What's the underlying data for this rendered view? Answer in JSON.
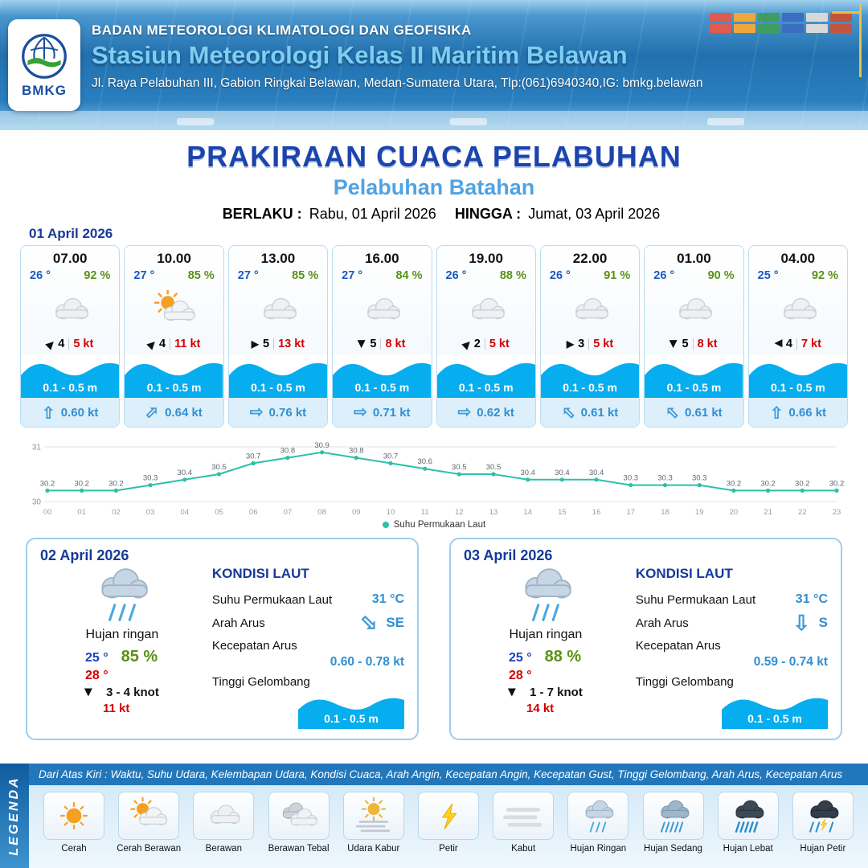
{
  "header": {
    "logo_label": "BMKG",
    "org": "BADAN METEOROLOGI KLIMATOLOGI DAN GEOFISIKA",
    "station": "Stasiun Meteorologi Kelas II Maritim Belawan",
    "address": "Jl. Raya Pelabuhan III, Gabion Ringkai Belawan, Medan-Sumatera Utara, Tlp:(061)6940340,IG: bmkg.belawan"
  },
  "title": {
    "main": "PRAKIRAAN CUACA PELABUHAN",
    "sub": "Pelabuhan Batahan",
    "valid_label": "BERLAKU :",
    "valid_value": "Rabu, 01 April 2026",
    "until_label": "HINGGA :",
    "until_value": "Jumat, 03 April 2026"
  },
  "forecast_date": "01 April 2026",
  "cards": [
    {
      "time": "07.00",
      "temp": "26 °",
      "rh": "92 %",
      "icon": "berawan",
      "wind_dir": "ne",
      "wind": "4",
      "gust": "5 kt",
      "wave": "0.1 - 0.5 m",
      "current_dir": "n",
      "current": "0.60 kt"
    },
    {
      "time": "10.00",
      "temp": "27 °",
      "rh": "85 %",
      "icon": "cerah-berawan",
      "wind_dir": "ne",
      "wind": "4",
      "gust": "11 kt",
      "wave": "0.1 - 0.5 m",
      "current_dir": "ne",
      "current": "0.64 kt"
    },
    {
      "time": "13.00",
      "temp": "27 °",
      "rh": "85 %",
      "icon": "berawan",
      "wind_dir": "e",
      "wind": "5",
      "gust": "13 kt",
      "wave": "0.1 - 0.5 m",
      "current_dir": "e",
      "current": "0.76 kt"
    },
    {
      "time": "16.00",
      "temp": "27 °",
      "rh": "84 %",
      "icon": "berawan",
      "wind_dir": "s",
      "wind": "5",
      "gust": "8 kt",
      "wave": "0.1 - 0.5 m",
      "current_dir": "e",
      "current": "0.71 kt"
    },
    {
      "time": "19.00",
      "temp": "26 °",
      "rh": "88 %",
      "icon": "berawan",
      "wind_dir": "ne",
      "wind": "2",
      "gust": "5 kt",
      "wave": "0.1 - 0.5 m",
      "current_dir": "e",
      "current": "0.62 kt"
    },
    {
      "time": "22.00",
      "temp": "26 °",
      "rh": "91 %",
      "icon": "berawan",
      "wind_dir": "e",
      "wind": "3",
      "gust": "5 kt",
      "wave": "0.1 - 0.5 m",
      "current_dir": "nw",
      "current": "0.61 kt"
    },
    {
      "time": "01.00",
      "temp": "26 °",
      "rh": "90 %",
      "icon": "berawan",
      "wind_dir": "s",
      "wind": "5",
      "gust": "8 kt",
      "wave": "0.1 - 0.5 m",
      "current_dir": "nw",
      "current": "0.61 kt"
    },
    {
      "time": "04.00",
      "temp": "25 °",
      "rh": "92 %",
      "icon": "berawan",
      "wind_dir": "w",
      "wind": "4",
      "gust": "7 kt",
      "wave": "0.1 - 0.5 m",
      "current_dir": "n",
      "current": "0.66 kt"
    }
  ],
  "chart_data": {
    "type": "line",
    "title": "",
    "series_name": "Suhu Permukaan Laut",
    "x": [
      "00",
      "01",
      "02",
      "03",
      "04",
      "05",
      "06",
      "07",
      "08",
      "09",
      "10",
      "11",
      "12",
      "13",
      "14",
      "15",
      "16",
      "17",
      "18",
      "19",
      "20",
      "21",
      "22",
      "23"
    ],
    "values": [
      30.2,
      30.2,
      30.2,
      30.3,
      30.4,
      30.5,
      30.7,
      30.8,
      30.9,
      30.8,
      30.7,
      30.6,
      30.5,
      30.5,
      30.4,
      30.4,
      30.4,
      30.3,
      30.3,
      30.3,
      30.2,
      30.2,
      30.2,
      30.2
    ],
    "ylim": [
      30,
      31
    ],
    "line_color": "#2cc0a8",
    "grid": true,
    "legend_position": "bottom"
  },
  "sea_labels": {
    "title": "KONDISI LAUT",
    "sst": "Suhu Permukaan Laut",
    "arah": "Arah Arus",
    "kecepatan": "Kecepatan Arus",
    "tinggi": "Tinggi Gelombang"
  },
  "daily": [
    {
      "date": "02 April 2026",
      "icon": "hujan-ringan",
      "condition": "Hujan ringan",
      "temp_min": "25 °",
      "temp_max": "28 °",
      "rh": "85 %",
      "wind_dir": "s",
      "wind": "3 - 4 knot",
      "gust": "11 kt",
      "sst": "31 °C",
      "current_dir": "se",
      "current_dir_label": "SE",
      "current_speed": "0.60 - 0.78 kt",
      "wave": "0.1 - 0.5 m"
    },
    {
      "date": "03 April 2026",
      "icon": "hujan-ringan",
      "condition": "Hujan ringan",
      "temp_min": "25 °",
      "temp_max": "28 °",
      "rh": "88 %",
      "wind_dir": "s",
      "wind": "1 - 7 knot",
      "gust": "14 kt",
      "sst": "31 °C",
      "current_dir": "s",
      "current_dir_label": "S",
      "current_speed": "0.59 - 0.74 kt",
      "wave": "0.1 - 0.5 m"
    }
  ],
  "legend": {
    "title": "LEGENDA",
    "description": "Dari Atas Kiri : Waktu, Suhu Udara, Kelembapan Udara, Kondisi Cuaca, Arah Angin, Kecepatan Angin, Kecepatan Gust, Tinggi Gelombang, Arah Arus, Kecepatan Arus",
    "items": [
      {
        "icon": "cerah",
        "label": "Cerah"
      },
      {
        "icon": "cerah-berawan",
        "label": "Cerah Berawan"
      },
      {
        "icon": "berawan",
        "label": "Berawan"
      },
      {
        "icon": "berawan-tebal",
        "label": "Berawan Tebal"
      },
      {
        "icon": "udara-kabur",
        "label": "Udara Kabur"
      },
      {
        "icon": "petir",
        "label": "Petir"
      },
      {
        "icon": "kabut",
        "label": "Kabut"
      },
      {
        "icon": "hujan-ringan",
        "label": "Hujan Ringan"
      },
      {
        "icon": "hujan-sedang",
        "label": "Hujan Sedang"
      },
      {
        "icon": "hujan-lebat",
        "label": "Hujan Lebat"
      },
      {
        "icon": "hujan-petir",
        "label": "Hujan Petir"
      }
    ]
  }
}
